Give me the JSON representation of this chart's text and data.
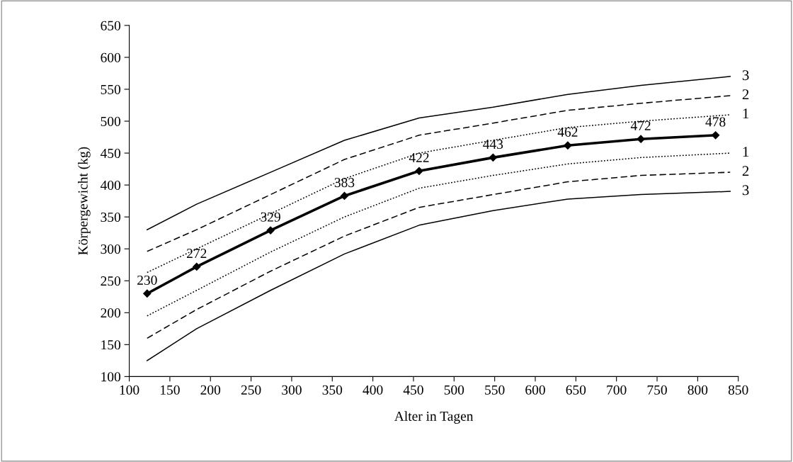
{
  "chart_data": {
    "type": "line",
    "xlabel": "Alter in Tagen",
    "ylabel": "Körpergewicht (kg)",
    "xlim": [
      100,
      850
    ],
    "xticks": [
      100,
      150,
      200,
      250,
      300,
      350,
      400,
      450,
      500,
      550,
      600,
      650,
      700,
      750,
      800,
      850
    ],
    "ylim": [
      100,
      650
    ],
    "yticks": [
      100,
      150,
      200,
      250,
      300,
      350,
      400,
      450,
      500,
      550,
      600,
      650
    ],
    "grid": false,
    "legend": false,
    "series": [
      {
        "name": "3",
        "color": "#000000",
        "line_style": "solid",
        "x": [
          122,
          183,
          274,
          365,
          457,
          548,
          640,
          730,
          840
        ],
        "values": [
          330,
          370,
          420,
          470,
          505,
          522,
          542,
          556,
          570
        ]
      },
      {
        "name": "2",
        "color": "#000000",
        "line_style": "dashed",
        "x": [
          122,
          183,
          274,
          365,
          457,
          548,
          640,
          730,
          840
        ],
        "values": [
          296,
          330,
          385,
          440,
          478,
          497,
          517,
          528,
          540
        ]
      },
      {
        "name": "1",
        "color": "#000000",
        "line_style": "dotted",
        "x": [
          122,
          183,
          274,
          365,
          457,
          548,
          640,
          730,
          840
        ],
        "values": [
          263,
          300,
          355,
          410,
          450,
          470,
          490,
          500,
          510
        ]
      },
      {
        "color": "#000000",
        "line_style": "solid",
        "marker": "diamond",
        "x": [
          122,
          183,
          274,
          365,
          457,
          548,
          640,
          730,
          822
        ],
        "values": [
          230,
          272,
          329,
          383,
          422,
          443,
          462,
          472,
          478
        ],
        "value_labels": [
          "230",
          "272",
          "329",
          "383",
          "422",
          "443",
          "462",
          "472",
          "478"
        ]
      },
      {
        "name": "1",
        "color": "#000000",
        "line_style": "dotted",
        "x": [
          122,
          183,
          274,
          365,
          457,
          548,
          640,
          730,
          840
        ],
        "values": [
          195,
          235,
          295,
          350,
          395,
          415,
          433,
          443,
          450
        ]
      },
      {
        "name": "2",
        "color": "#000000",
        "line_style": "dashed",
        "x": [
          122,
          183,
          274,
          365,
          457,
          548,
          640,
          730,
          840
        ],
        "values": [
          160,
          205,
          265,
          320,
          365,
          385,
          405,
          415,
          420
        ]
      },
      {
        "name": "3",
        "color": "#000000",
        "line_style": "solid",
        "x": [
          122,
          183,
          274,
          365,
          457,
          548,
          640,
          730,
          840
        ],
        "values": [
          125,
          175,
          235,
          292,
          337,
          360,
          378,
          385,
          390
        ]
      }
    ]
  }
}
